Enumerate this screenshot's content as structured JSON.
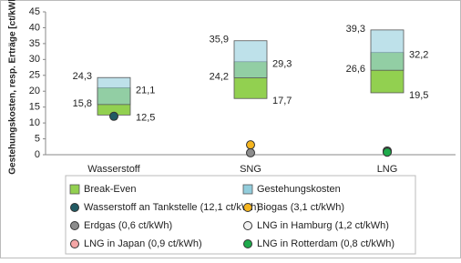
{
  "chart_data": {
    "type": "floating-bar",
    "y_label": "Gestehungskosten, resp. Erträge [ct/kWh]",
    "categories": [
      "Wasserstoff",
      "SNG",
      "LNG"
    ],
    "ylim": [
      0,
      45
    ],
    "yticks": [
      0,
      5,
      10,
      15,
      20,
      25,
      30,
      35,
      40,
      45
    ],
    "series": [
      {
        "name": "Break-Even",
        "color": "#92d050",
        "values": [
          [
            12.5,
            21.1
          ],
          [
            17.7,
            29.3
          ],
          [
            19.5,
            32.2
          ]
        ],
        "value_labels": [
          [
            "12,5",
            "21,1"
          ],
          [
            "17,7",
            "29,3"
          ],
          [
            "19,5",
            "32,2"
          ]
        ]
      },
      {
        "name": "Gestehungskosten",
        "color": "#92cddc",
        "values": [
          [
            15.8,
            24.3
          ],
          [
            24.2,
            35.9
          ],
          [
            26.6,
            39.3
          ]
        ],
        "value_labels": [
          [
            "15,8",
            "24,3"
          ],
          [
            "24,2",
            "35,9"
          ],
          [
            "26,6",
            "39,3"
          ]
        ]
      }
    ],
    "markers": [
      {
        "name": "Wasserstoff an Tankstelle (12,1 ct/kWh)",
        "color": "#215a63",
        "category": "Wasserstoff",
        "value": 12.1
      },
      {
        "name": "Biogas (3,1 ct/kWh)",
        "color": "#f5b51f",
        "category": "SNG",
        "value": 3.1
      },
      {
        "name": "Erdgas (0,6 ct/kWh)",
        "color": "#8c8c8c",
        "category": "SNG",
        "value": 0.6
      },
      {
        "name": "LNG in Hamburg (1,2 ct/kWh)",
        "color": "#f2f2f2",
        "category": "LNG",
        "value": 1.2
      },
      {
        "name": "LNG in Japan (0,9 ct/kWh)",
        "color": "#f4a6a6",
        "category": "LNG",
        "value": 0.9
      },
      {
        "name": "LNG in Rotterdam (0,8 ct/kWh)",
        "color": "#1eaa4b",
        "category": "LNG",
        "value": 0.8
      }
    ]
  }
}
